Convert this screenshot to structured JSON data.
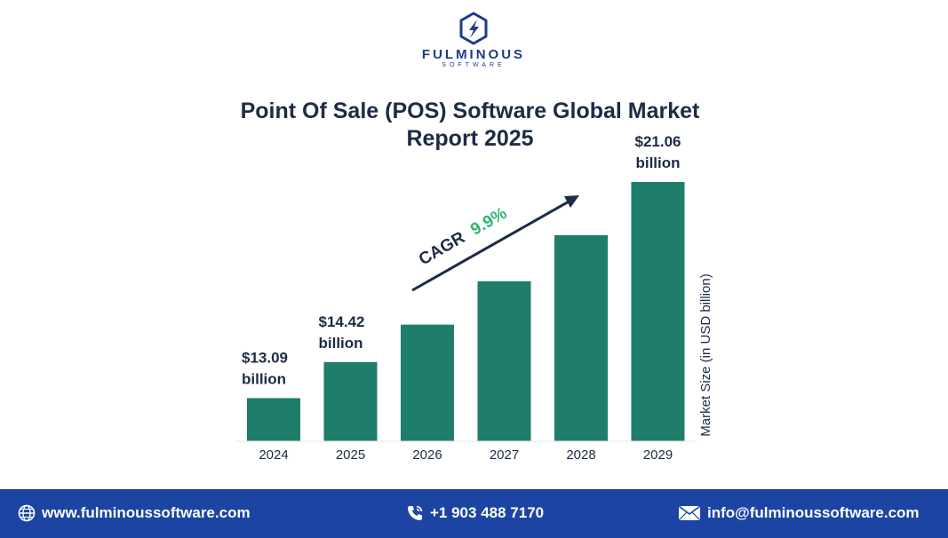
{
  "brand": {
    "name": "FULMINOUS",
    "sub": "SOFTWARE",
    "colors": {
      "primary": "#1e3a8a",
      "bar": "#1f7d6b",
      "cagr": "#2bb673",
      "footer": "#1c44a3",
      "text": "#1d2b45"
    }
  },
  "chart_data": {
    "type": "bar",
    "title": "Point Of Sale (POS) Software Global Market Report 2025",
    "categories": [
      "2024",
      "2025",
      "2026",
      "2027",
      "2028",
      "2029"
    ],
    "values": [
      13.09,
      14.42,
      15.8,
      17.4,
      19.1,
      21.06
    ],
    "data_labels": [
      {
        "index": 0,
        "value": "$13.09",
        "unit": "billion"
      },
      {
        "index": 1,
        "value": "$14.42",
        "unit": "billion"
      },
      {
        "index": 5,
        "value": "$21.06",
        "unit": "billion"
      }
    ],
    "ylabel": "Market Size (in USD billion)",
    "xlabel": "",
    "ylim": [
      11.5,
      21.06
    ],
    "annotation": {
      "label": "CAGR",
      "value": "9.9%"
    },
    "grid": false,
    "legend": "none"
  },
  "footer": {
    "website": "www.fulminoussoftware.com",
    "phone": "+1 903 488 7170",
    "email": "info@fulminoussoftware.com",
    "icons": [
      "globe-icon",
      "phone-icon",
      "mail-icon"
    ]
  }
}
